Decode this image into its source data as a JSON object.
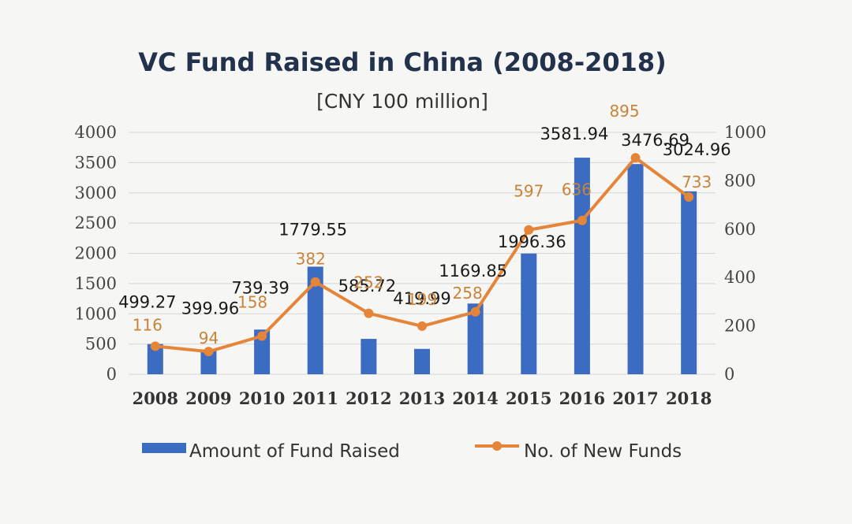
{
  "chart_data": {
    "type": "bar",
    "title": "VC Fund Raised in China (2008-2018)",
    "subtitle": "[CNY 100 million]",
    "categories": [
      "2008",
      "2009",
      "2010",
      "2011",
      "2012",
      "2013",
      "2014",
      "2015",
      "2016",
      "2017",
      "2018"
    ],
    "series": [
      {
        "name": "Amount of Fund Raised",
        "type": "bar",
        "axis": "left",
        "color": "#3b6cc1",
        "values": [
          499.27,
          399.96,
          739.39,
          1779.55,
          585.72,
          419.99,
          1169.85,
          1996.36,
          3581.94,
          3476.69,
          3024.96
        ],
        "labels": [
          "499.27",
          "399.96",
          "739.39",
          "1779.55",
          "585.72",
          "419.99",
          "1169.85",
          "1996.36",
          "3581.94",
          "3476.69",
          "3024.96"
        ]
      },
      {
        "name": "No. of New Funds",
        "type": "line",
        "axis": "right",
        "color": "#e5853a",
        "values": [
          116,
          94,
          158,
          382,
          252,
          199,
          258,
          597,
          636,
          895,
          733
        ],
        "labels": [
          "116",
          "94",
          "158",
          "382",
          "252",
          "199",
          "258",
          "597",
          "636",
          "895",
          "733"
        ]
      }
    ],
    "y_left": {
      "range": [
        0,
        4000
      ],
      "ticks": [
        "0",
        "500",
        "1000",
        "1500",
        "2000",
        "2500",
        "3000",
        "3500",
        "4000"
      ]
    },
    "y_right": {
      "range": [
        0,
        1000
      ],
      "ticks": [
        "0",
        "200",
        "400",
        "600",
        "800",
        "1000"
      ]
    },
    "grid": "horizontal",
    "legend": "bottom"
  }
}
